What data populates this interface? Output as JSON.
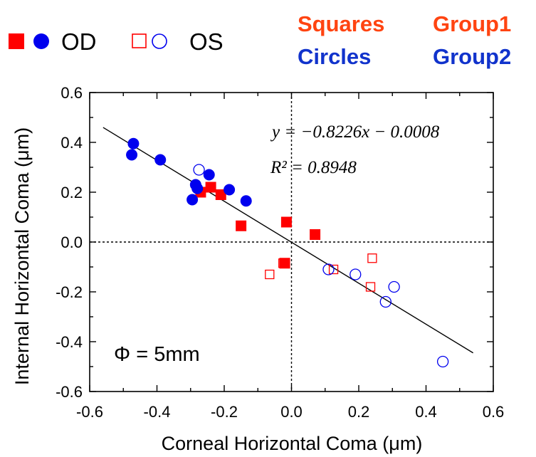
{
  "legend": {
    "od_label": "OD",
    "os_label": "OS",
    "squares_text": "Squares",
    "group1_text": "Group1",
    "circles_text": "Circles",
    "group2_text": "Group2"
  },
  "colors": {
    "group1": "#ff0000",
    "group1_text": "#ff4411",
    "group2": "#0000ee",
    "group2_text": "#1133cc"
  },
  "annotations": {
    "equation": "y = −0.8226x − 0.0008",
    "r_squared": "R² = 0.8948",
    "phi": "Φ = 5mm"
  },
  "chart_data": {
    "type": "scatter",
    "xlabel": "Corneal Horizontal Coma (μm)",
    "ylabel": "Internal Horizontal Coma (μm)",
    "xlim": [
      -0.6,
      0.6
    ],
    "ylim": [
      -0.6,
      0.6
    ],
    "x_ticks": [
      "-0.6",
      "-0.4",
      "-0.2",
      "0.0",
      "0.2",
      "0.4",
      "0.6"
    ],
    "y_ticks": [
      "0.6",
      "0.4",
      "0.2",
      "0.0",
      "-0.2",
      "-0.4",
      "-0.6"
    ],
    "reference_lines": {
      "x": 0,
      "y": 0,
      "style": "dotted"
    },
    "fit_line": {
      "slope": -0.8226,
      "intercept": -0.0008,
      "x_range": [
        -0.56,
        0.54
      ],
      "r_squared": 0.8948
    },
    "series": [
      {
        "marker": "square",
        "filled": true,
        "eye": "OD",
        "group": "Group1",
        "points": [
          [
            -0.27,
            0.2
          ],
          [
            -0.24,
            0.22
          ],
          [
            -0.21,
            0.19
          ],
          [
            -0.15,
            0.065
          ],
          [
            -0.015,
            0.08
          ],
          [
            -0.02,
            -0.085
          ],
          [
            0.07,
            0.03
          ]
        ]
      },
      {
        "marker": "circle",
        "filled": true,
        "eye": "OD",
        "group": "Group2",
        "points": [
          [
            -0.47,
            0.395
          ],
          [
            -0.475,
            0.35
          ],
          [
            -0.39,
            0.33
          ],
          [
            -0.285,
            0.23
          ],
          [
            -0.245,
            0.27
          ],
          [
            -0.185,
            0.21
          ],
          [
            -0.295,
            0.17
          ],
          [
            -0.135,
            0.165
          ],
          [
            -0.28,
            0.215
          ]
        ]
      },
      {
        "marker": "square",
        "filled": false,
        "eye": "OS",
        "group": "Group1",
        "points": [
          [
            -0.065,
            -0.13
          ],
          [
            -0.025,
            -0.085
          ],
          [
            0.125,
            -0.11
          ],
          [
            0.24,
            -0.065
          ],
          [
            0.235,
            -0.18
          ]
        ]
      },
      {
        "marker": "circle",
        "filled": false,
        "eye": "OS",
        "group": "Group2",
        "points": [
          [
            -0.275,
            0.29
          ],
          [
            0.11,
            -0.11
          ],
          [
            0.19,
            -0.13
          ],
          [
            0.305,
            -0.18
          ],
          [
            0.28,
            -0.24
          ],
          [
            0.45,
            -0.48
          ]
        ]
      }
    ]
  }
}
